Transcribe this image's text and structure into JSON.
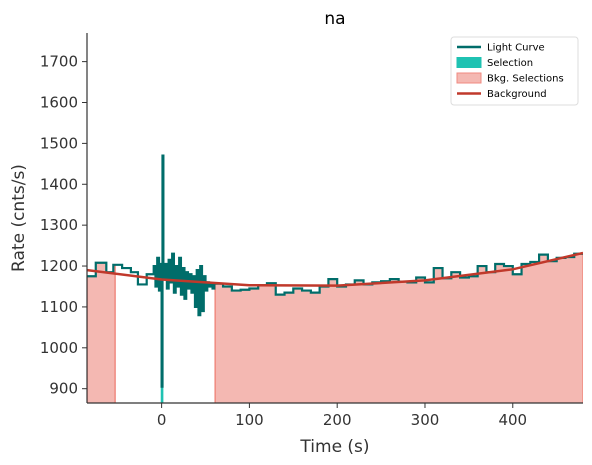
{
  "chart_data": {
    "type": "line",
    "title": "na",
    "xlabel": "Time (s)",
    "ylabel": "Rate (cnts/s)",
    "xlim": [
      -85,
      480
    ],
    "ylim": [
      865,
      1770
    ],
    "xticks": [
      0,
      100,
      200,
      300,
      400
    ],
    "yticks": [
      900,
      1000,
      1100,
      1200,
      1300,
      1400,
      1500,
      1600,
      1700
    ],
    "grid": false,
    "legend_position": "top-right",
    "colors": {
      "light_curve": "#006d6a",
      "selection": "#1fc2b2",
      "bkg_selection_fill": "#f4b8b2",
      "bkg_selection_edge": "#f08a80",
      "background": "#c0392b"
    },
    "legend": [
      {
        "label": "Light Curve",
        "kind": "line",
        "color": "#006d6a"
      },
      {
        "label": "Selection",
        "kind": "patch",
        "color": "#1fc2b2"
      },
      {
        "label": "Bkg. Selections",
        "kind": "patch",
        "color": "#f4b8b2"
      },
      {
        "label": "Background",
        "kind": "line",
        "color": "#c0392b"
      }
    ],
    "bkg_selections": [
      [
        -85,
        -53
      ],
      [
        61,
        480
      ]
    ],
    "selection": [
      -1,
      2
    ],
    "background_poly": [
      [
        -85,
        1190
      ],
      [
        0,
        1167
      ],
      [
        100,
        1153
      ],
      [
        200,
        1152
      ],
      [
        300,
        1165
      ],
      [
        400,
        1192
      ],
      [
        480,
        1232
      ]
    ],
    "series": [
      {
        "name": "Light Curve",
        "x": [
          -85,
          -75,
          -63,
          -55,
          -45,
          -35,
          -27,
          -17,
          -9,
          -7,
          -5,
          -3,
          -1,
          0,
          1,
          2,
          4,
          6,
          8,
          10,
          12,
          14,
          16,
          18,
          20,
          22,
          24,
          26,
          28,
          30,
          32,
          34,
          36,
          38,
          40,
          42,
          44,
          46,
          48,
          50,
          52,
          54,
          56,
          58,
          60,
          62,
          70,
          80,
          90,
          100,
          110,
          120,
          130,
          140,
          150,
          160,
          170,
          180,
          190,
          200,
          210,
          220,
          230,
          240,
          250,
          260,
          270,
          280,
          290,
          300,
          310,
          320,
          330,
          340,
          350,
          360,
          370,
          380,
          390,
          400,
          410,
          420,
          430,
          440,
          450,
          460,
          470
        ],
        "y": [
          1175,
          1208,
          1185,
          1203,
          1195,
          1185,
          1155,
          1180,
          1200,
          1150,
          1220,
          1140,
          1205,
          905,
          1470,
          1170,
          1205,
          1145,
          1215,
          1160,
          1230,
          1135,
          1200,
          1150,
          1220,
          1130,
          1195,
          1120,
          1185,
          1145,
          1180,
          1135,
          1175,
          1100,
          1190,
          1080,
          1200,
          1090,
          1175,
          1140,
          1160,
          1150,
          1155,
          1145,
          1158,
          1157,
          1150,
          1140,
          1142,
          1145,
          1153,
          1158,
          1130,
          1135,
          1145,
          1140,
          1135,
          1150,
          1168,
          1150,
          1155,
          1165,
          1155,
          1160,
          1163,
          1168,
          1162,
          1160,
          1172,
          1160,
          1195,
          1170,
          1185,
          1172,
          1175,
          1200,
          1185,
          1205,
          1200,
          1180,
          1205,
          1210,
          1228,
          1212,
          1220,
          1222,
          1230
        ]
      }
    ]
  }
}
